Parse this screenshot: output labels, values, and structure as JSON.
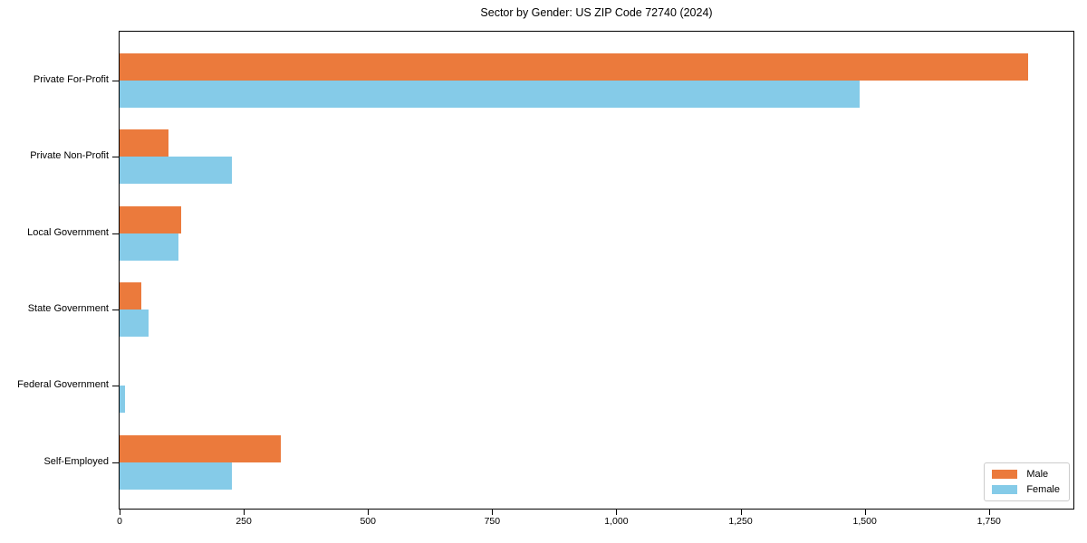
{
  "chart_data": {
    "type": "bar",
    "orientation": "horizontal",
    "title": "Sector by Gender: US ZIP Code 72740 (2024)",
    "xlabel": "",
    "ylabel": "",
    "grid": false,
    "categories": [
      "Private For-Profit",
      "Private Non-Profit",
      "Local Government",
      "State Government",
      "Federal Government",
      "Self-Employed"
    ],
    "series": [
      {
        "name": "Male",
        "color": "#EB7A3C",
        "values": [
          1828,
          98,
          124,
          44,
          0,
          324
        ]
      },
      {
        "name": "Female",
        "color": "#85CBE8",
        "values": [
          1490,
          226,
          118,
          58,
          11,
          226
        ]
      }
    ],
    "xlim": [
      0,
      1920
    ],
    "xticks": [
      0,
      250,
      500,
      750,
      1000,
      1250,
      1500,
      1750
    ],
    "xtick_labels": [
      "0",
      "250",
      "500",
      "750",
      "1,000",
      "1,250",
      "1,500",
      "1,750"
    ],
    "legend": {
      "position": "lower right",
      "entries": [
        "Male",
        "Female"
      ]
    }
  }
}
